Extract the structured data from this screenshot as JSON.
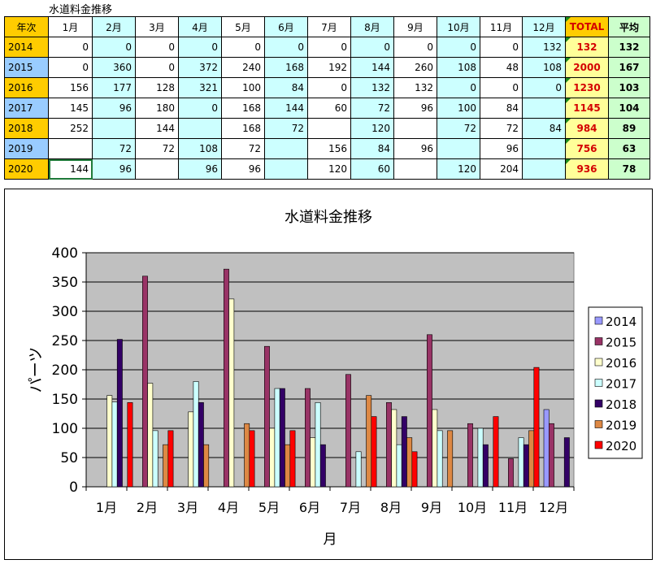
{
  "sheet": {
    "title": "水道料金推移",
    "header": [
      "年次",
      "1月",
      "2月",
      "3月",
      "4月",
      "5月",
      "6月",
      "7月",
      "8月",
      "9月",
      "10月",
      "11月",
      "12月",
      "TOTAL",
      "平均"
    ],
    "rows": [
      {
        "year": "2014",
        "vals": [
          "0",
          "0",
          "0",
          "0",
          "0",
          "0",
          "0",
          "0",
          "0",
          "0",
          "0",
          "132"
        ],
        "total": "132",
        "avg": "132"
      },
      {
        "year": "2015",
        "vals": [
          "0",
          "360",
          "0",
          "372",
          "240",
          "168",
          "192",
          "144",
          "260",
          "108",
          "48",
          "108"
        ],
        "total": "2000",
        "avg": "167"
      },
      {
        "year": "2016",
        "vals": [
          "156",
          "177",
          "128",
          "321",
          "100",
          "84",
          "0",
          "132",
          "132",
          "0",
          "0",
          "0"
        ],
        "total": "1230",
        "avg": "103"
      },
      {
        "year": "2017",
        "vals": [
          "145",
          "96",
          "180",
          "0",
          "168",
          "144",
          "60",
          "72",
          "96",
          "100",
          "84",
          ""
        ],
        "total": "1145",
        "avg": "104"
      },
      {
        "year": "2018",
        "vals": [
          "252",
          "",
          "144",
          "",
          "168",
          "72",
          "",
          "120",
          "",
          "72",
          "72",
          "84"
        ],
        "total": "984",
        "avg": "89"
      },
      {
        "year": "2019",
        "vals": [
          "",
          "72",
          "72",
          "108",
          "72",
          "",
          "156",
          "84",
          "96",
          "",
          "96",
          ""
        ],
        "total": "756",
        "avg": "63"
      },
      {
        "year": "2020",
        "vals": [
          "144",
          "96",
          "",
          "96",
          "96",
          "",
          "120",
          "60",
          "",
          "120",
          "204",
          ""
        ],
        "total": "936",
        "avg": "78"
      }
    ],
    "colors": {
      "header_yellow": "#ffcc00",
      "year_blue": "#99ccff",
      "col_cyan": "#ccffff",
      "total_bg": "#ffff99",
      "total_text": "#d40000",
      "avg_bg": "#ccffcc",
      "selected_border": "#1f7a3a"
    }
  },
  "chart_data": {
    "type": "bar",
    "title": "水道料金推移",
    "xlabel": "月",
    "ylabel": "パーツ",
    "categories": [
      "1月",
      "2月",
      "3月",
      "4月",
      "5月",
      "6月",
      "7月",
      "8月",
      "9月",
      "10月",
      "11月",
      "12月"
    ],
    "ylim": [
      0,
      400
    ],
    "yticks": [
      0,
      50,
      100,
      150,
      200,
      250,
      300,
      350,
      400
    ],
    "grid": true,
    "legend_position": "right",
    "plot_bg": "#c0c0c0",
    "series": [
      {
        "name": "2014",
        "color": "#9999ff",
        "values": [
          0,
          0,
          0,
          0,
          0,
          0,
          0,
          0,
          0,
          0,
          0,
          132
        ]
      },
      {
        "name": "2015",
        "color": "#993366",
        "values": [
          0,
          360,
          0,
          372,
          240,
          168,
          192,
          144,
          260,
          108,
          48,
          108
        ]
      },
      {
        "name": "2016",
        "color": "#ffffcc",
        "values": [
          156,
          177,
          128,
          321,
          100,
          84,
          0,
          132,
          132,
          0,
          0,
          0
        ]
      },
      {
        "name": "2017",
        "color": "#ccffff",
        "values": [
          145,
          96,
          180,
          0,
          168,
          144,
          60,
          72,
          96,
          100,
          84,
          0
        ]
      },
      {
        "name": "2018",
        "color": "#330066",
        "values": [
          252,
          0,
          144,
          0,
          168,
          72,
          0,
          120,
          0,
          72,
          72,
          84
        ]
      },
      {
        "name": "2019",
        "color": "#dd8844",
        "values": [
          0,
          72,
          72,
          108,
          72,
          0,
          156,
          84,
          96,
          0,
          96,
          0
        ]
      },
      {
        "name": "2020",
        "color": "#ff0000",
        "values": [
          144,
          96,
          0,
          96,
          96,
          0,
          120,
          60,
          0,
          120,
          204,
          0
        ]
      }
    ]
  }
}
